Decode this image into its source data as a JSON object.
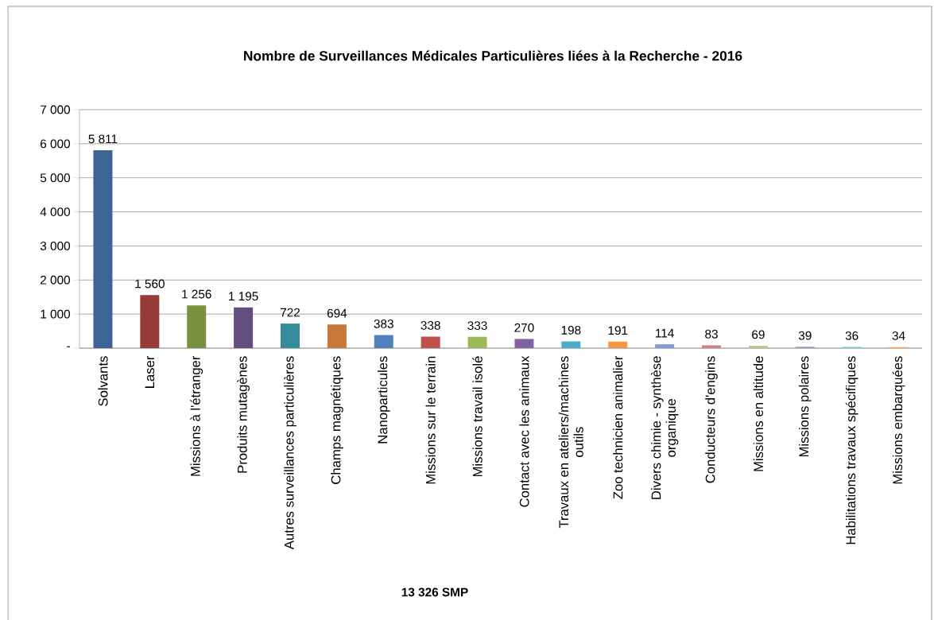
{
  "chart_data": {
    "type": "bar",
    "title": "Nombre de Surveillances Médicales Particulières liées à la Recherche - 2016",
    "categories": [
      "Solvants",
      "Laser",
      "Missions à l'étranger",
      "Produits mutagènes",
      "Autres surveillances particulières",
      "Champs magnétiques",
      "Nanoparticules",
      "Missions sur le terrain",
      "Missions travail isolé",
      "Contact avec les animaux",
      "Travaux en ateliers/machines outils",
      "Zoo technicien animalier",
      "Divers chimie - synthèse organique",
      "Conducteurs d'engins",
      "Missions en altitude",
      "Missions polaires",
      "Habilitations travaux spécifiques",
      "Missions embarquées"
    ],
    "values": [
      5811,
      1560,
      1256,
      1195,
      722,
      694,
      383,
      338,
      333,
      270,
      198,
      191,
      114,
      83,
      69,
      39,
      36,
      34
    ],
    "value_labels": [
      "5 811",
      "1 560",
      "1 256",
      "1 195",
      "722",
      "694",
      "383",
      "338",
      "333",
      "270",
      "198",
      "191",
      "114",
      "83",
      "69",
      "39",
      "36",
      "34"
    ],
    "colors": [
      "#3c6595",
      "#963b38",
      "#7a9142",
      "#624d7c",
      "#358a9c",
      "#c8793a",
      "#4f81bd",
      "#c0504d",
      "#9bbb59",
      "#8064a2",
      "#4bacc6",
      "#f79646",
      "#7f9fd0",
      "#d08080",
      "#b3cc85",
      "#a08fc0",
      "#7ec8dd",
      "#f8b070"
    ],
    "ylim": [
      0,
      7000
    ],
    "yticks": [
      {
        "value": 0,
        "label": "-"
      },
      {
        "value": 1000,
        "label": "1 000"
      },
      {
        "value": 2000,
        "label": "2 000"
      },
      {
        "value": 3000,
        "label": "3 000"
      },
      {
        "value": 4000,
        "label": "4 000"
      },
      {
        "value": 5000,
        "label": "5 000"
      },
      {
        "value": 6000,
        "label": "6 000"
      },
      {
        "value": 7000,
        "label": "7 000"
      }
    ],
    "grid": "y",
    "annotations": [
      "13 326 SMP"
    ]
  }
}
